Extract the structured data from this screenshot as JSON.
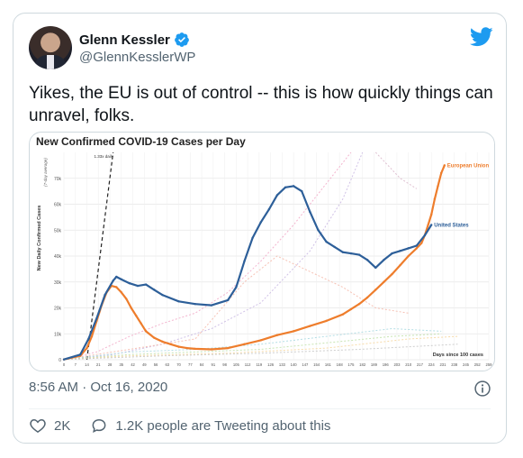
{
  "tweet": {
    "author": {
      "display_name": "Glenn Kessler",
      "handle": "@GlennKesslerWP",
      "verified": true
    },
    "text": "Yikes, the EU is out of control -- this is how quickly things can unravel, folks.",
    "timestamp": "8:56 AM · Oct 16, 2020",
    "likes": "2K",
    "tweeting_about": "1.2K people are Tweeting about this",
    "icons": {
      "brand": "twitter-bird-icon",
      "verified": "verified-badge-icon",
      "info": "info-icon",
      "like": "heart-icon",
      "reply": "speech-bubble-icon"
    },
    "colors": {
      "verified": "#1d9bf0",
      "brand": "#1d9bf0",
      "secondary_text": "#536471"
    }
  },
  "chart_data": {
    "type": "line",
    "title": "New Confirmed COVID-19 Cases per Day",
    "ylabel": "New Daily Confirmed Cases",
    "ylabel_sub": "(7-day average)",
    "xlabel": "Days since 100 cases",
    "reference_label": "1.33x daily",
    "xlim": [
      0,
      259
    ],
    "ylim": [
      0,
      80000
    ],
    "x_ticks": [
      0,
      7,
      14,
      21,
      28,
      35,
      42,
      49,
      56,
      63,
      70,
      77,
      84,
      91,
      98,
      105,
      112,
      119,
      126,
      133,
      140,
      147,
      154,
      161,
      168,
      175,
      182,
      189,
      196,
      203,
      210,
      217,
      224,
      231,
      238,
      245,
      252,
      259
    ],
    "y_ticks": [
      {
        "value": 0,
        "label": "0"
      },
      {
        "value": 10000,
        "label": "10k"
      },
      {
        "value": 20000,
        "label": "20k"
      },
      {
        "value": 30000,
        "label": "30k"
      },
      {
        "value": 40000,
        "label": "40k"
      },
      {
        "value": 50000,
        "label": "50k"
      },
      {
        "value": 60000,
        "label": "60k"
      },
      {
        "value": 70000,
        "label": "70k"
      }
    ],
    "series": [
      {
        "name": "European Union",
        "color": "#ee7d2c",
        "x": [
          0,
          10,
          14,
          17,
          20,
          23,
          26,
          29,
          32,
          35,
          38,
          41,
          44,
          47,
          50,
          55,
          60,
          65,
          70,
          75,
          80,
          90,
          100,
          110,
          120,
          130,
          140,
          150,
          160,
          170,
          175,
          180,
          185,
          190,
          195,
          200,
          205,
          210,
          215,
          218,
          220,
          222,
          224,
          226,
          228,
          230,
          232
        ],
        "y": [
          100,
          1500,
          4500,
          9000,
          15000,
          21000,
          26000,
          28500,
          28000,
          26000,
          23500,
          20000,
          17000,
          14000,
          11000,
          8500,
          7000,
          6000,
          5000,
          4500,
          4200,
          4000,
          4500,
          6000,
          7500,
          9500,
          11000,
          13000,
          15000,
          17500,
          19500,
          21500,
          24000,
          27000,
          30000,
          33000,
          36500,
          40000,
          43000,
          45000,
          48000,
          52000,
          56000,
          62000,
          67000,
          72000,
          75000
        ]
      },
      {
        "name": "United States",
        "color": "#2d5f99",
        "x": [
          0,
          10,
          15,
          20,
          25,
          30,
          32,
          35,
          40,
          45,
          50,
          55,
          60,
          70,
          80,
          90,
          100,
          105,
          110,
          115,
          120,
          125,
          130,
          135,
          140,
          145,
          150,
          155,
          160,
          165,
          170,
          175,
          180,
          185,
          190,
          195,
          200,
          205,
          210,
          215,
          220,
          224
        ],
        "y": [
          100,
          2000,
          8000,
          16000,
          25000,
          30500,
          32000,
          31000,
          29500,
          28500,
          29000,
          27000,
          25000,
          22500,
          21500,
          21000,
          23000,
          28000,
          38000,
          47000,
          53000,
          58000,
          63500,
          66500,
          67000,
          65000,
          57000,
          50000,
          45500,
          43500,
          41500,
          41000,
          40500,
          38500,
          35500,
          38500,
          41000,
          42000,
          43000,
          44000,
          48000,
          52000
        ]
      }
    ],
    "legend_placement": "line-end labels",
    "grid": true
  }
}
